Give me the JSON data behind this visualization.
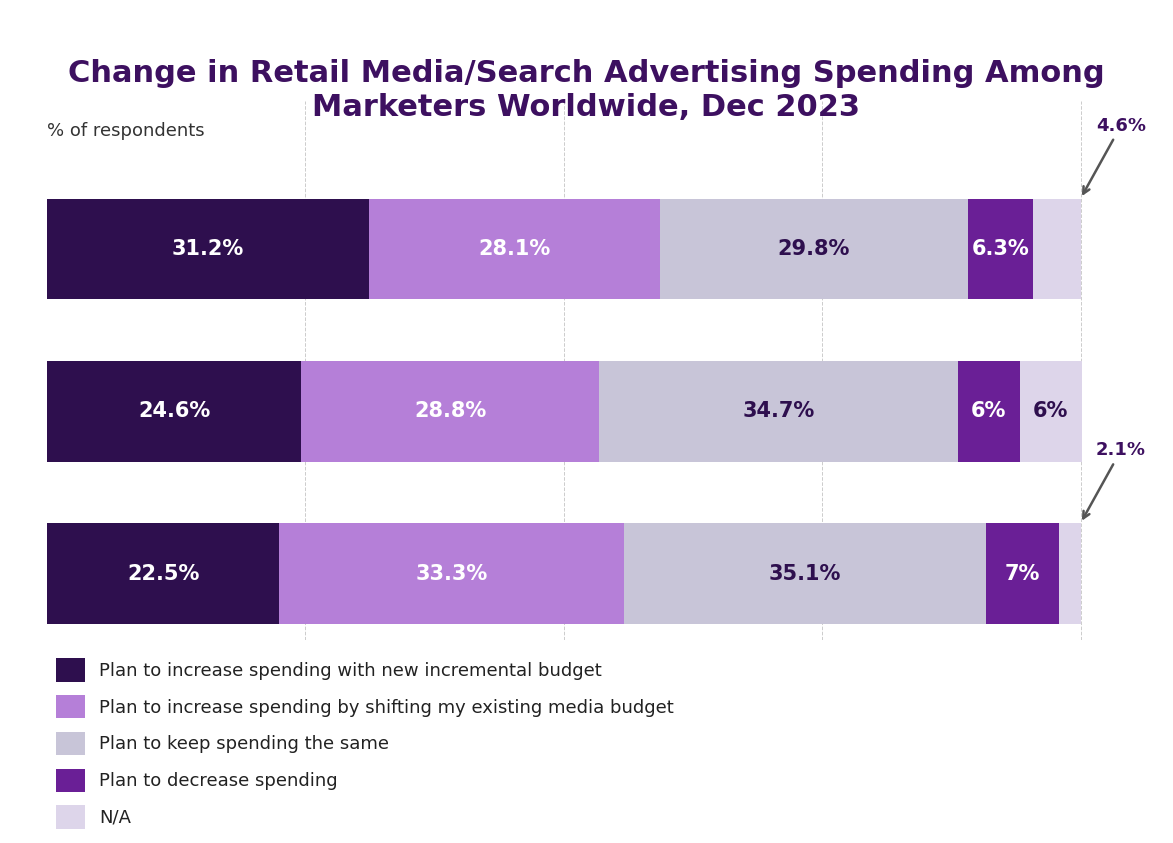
{
  "title": "Change in Retail Media/Search Advertising Spending Among\nMarketers Worldwide, Dec 2023",
  "ylabel": "% of respondents",
  "rows": [
    {
      "values": [
        31.2,
        28.1,
        29.8,
        6.3,
        4.6
      ],
      "labels": [
        "31.2%",
        "28.1%",
        "29.8%",
        "6.3%",
        ""
      ],
      "annotation": "4.6%",
      "has_na_label": false
    },
    {
      "values": [
        24.6,
        28.8,
        34.7,
        6.0,
        6.0
      ],
      "labels": [
        "24.6%",
        "28.8%",
        "34.7%",
        "6%",
        "6%"
      ],
      "annotation": null,
      "has_na_label": true
    },
    {
      "values": [
        22.5,
        33.3,
        35.1,
        7.0,
        2.1
      ],
      "labels": [
        "22.5%",
        "33.3%",
        "35.1%",
        "7%",
        ""
      ],
      "annotation": "2.1%",
      "has_na_label": false
    }
  ],
  "colors": [
    "#2e0f4e",
    "#b57fd8",
    "#c8c5d8",
    "#6a1f96",
    "#ddd5ea"
  ],
  "legend_labels": [
    "Plan to increase spending with new incremental budget",
    "Plan to increase spending by shifting my existing media budget",
    "Plan to keep spending the same",
    "Plan to decrease spending",
    "N/A"
  ],
  "legend_colors": [
    "#2e0f4e",
    "#b57fd8",
    "#c8c5d8",
    "#6a1f96",
    "#ddd5ea"
  ],
  "background_color": "#ffffff",
  "title_color": "#3d1060",
  "title_fontsize": 22,
  "label_fontsize": 15,
  "annotation_fontsize": 13,
  "ylabel_fontsize": 13,
  "legend_fontsize": 13
}
